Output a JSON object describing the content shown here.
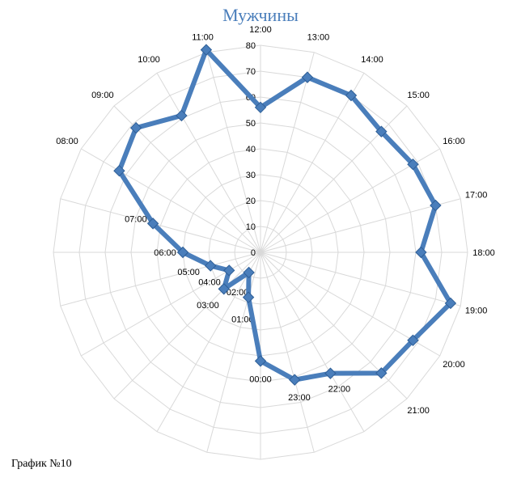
{
  "caption": "График №10",
  "chart_data": {
    "type": "radar",
    "title": "Мужчины",
    "axis_min": 0,
    "axis_max": 80,
    "ticks": [
      "0",
      "10",
      "20",
      "30",
      "40",
      "50",
      "60",
      "70",
      "80"
    ],
    "tick_values": [
      0,
      10,
      20,
      30,
      40,
      50,
      60,
      70,
      80
    ],
    "categories": [
      "12:00",
      "13:00",
      "14:00",
      "15:00",
      "16:00",
      "17:00",
      "18:00",
      "19:00",
      "20:00",
      "21:00",
      "22:00",
      "23:00",
      "00:00",
      "01:00",
      "02:00",
      "03:00",
      "04:00",
      "05:00",
      "06:00",
      "07:00",
      "08:00",
      "09:00",
      "10:00",
      "11:00"
    ],
    "series_values": [
      56,
      70,
      70,
      66,
      68,
      70,
      62,
      76,
      68,
      66,
      54,
      51,
      42,
      18,
      9,
      20,
      14,
      20,
      30,
      43,
      63,
      68,
      61,
      81
    ],
    "line_color": "#4a7ebb",
    "marker_color": "#4a7ebb",
    "grid_color": "#d9d9d9",
    "grid": true
  }
}
